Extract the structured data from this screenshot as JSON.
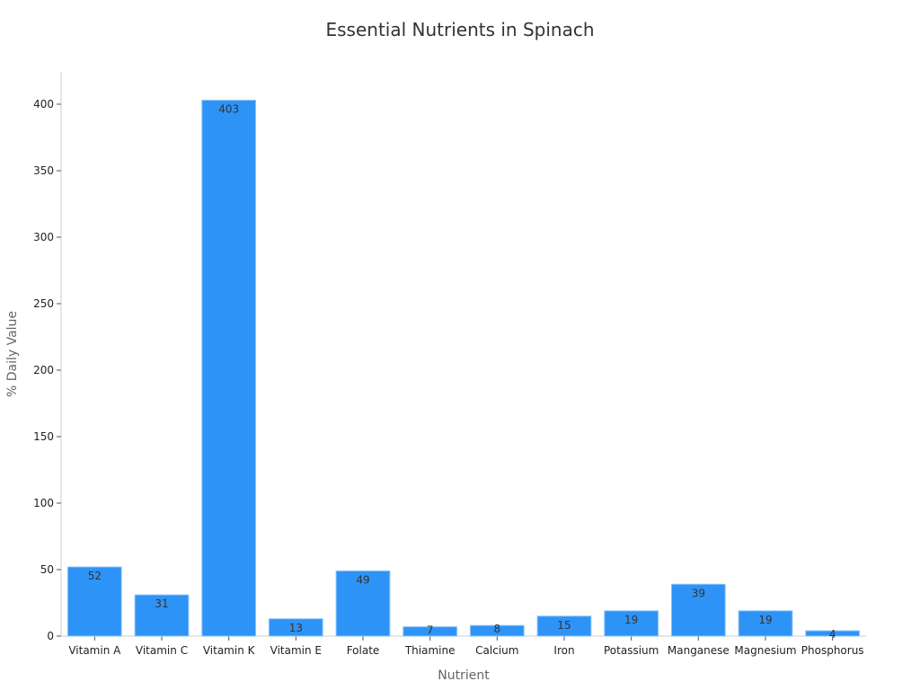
{
  "chart_data": {
    "type": "bar",
    "title": "Essential Nutrients in Spinach",
    "xlabel": "Nutrient",
    "ylabel": "% Daily Value",
    "categories": [
      "Vitamin A",
      "Vitamin C",
      "Vitamin K",
      "Vitamin E",
      "Folate",
      "Thiamine",
      "Calcium",
      "Iron",
      "Potassium",
      "Manganese",
      "Magnesium",
      "Phosphorus"
    ],
    "values": [
      52,
      31,
      403,
      13,
      49,
      7,
      8,
      15,
      19,
      39,
      19,
      4
    ],
    "ylim": [
      0,
      425
    ],
    "yticks": [
      0,
      50,
      100,
      150,
      200,
      250,
      300,
      350,
      400
    ],
    "grid": false,
    "bar_color": "#2e93f7",
    "data_labels": true
  }
}
